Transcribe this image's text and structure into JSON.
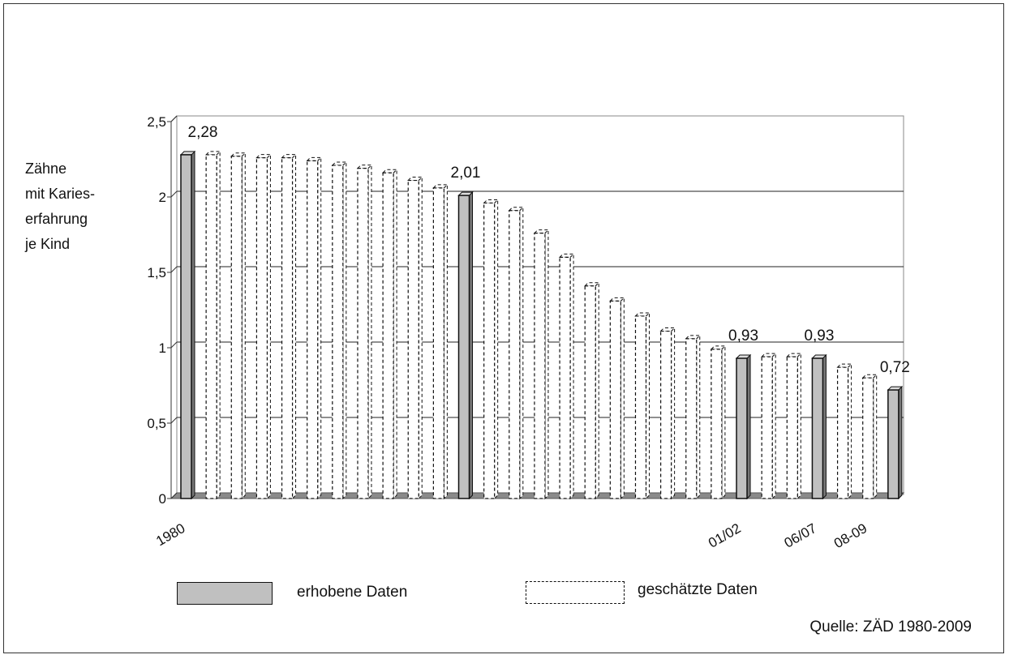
{
  "chart_data": {
    "type": "bar",
    "ylabel_lines": [
      "Zähne",
      "mit Karies-",
      "erfahrung",
      "je Kind"
    ],
    "ylim": [
      0,
      2.5
    ],
    "yticks": [
      0,
      0.5,
      1,
      1.5,
      2,
      2.5
    ],
    "ytick_labels": [
      "0",
      "0,5",
      "1",
      "1,5",
      "2",
      "2,5"
    ],
    "grid": true,
    "x_labels": [
      {
        "index": 0,
        "text": "1980"
      },
      {
        "index": 22,
        "text": "01/02"
      },
      {
        "index": 25,
        "text": "06/07"
      },
      {
        "index": 27,
        "text": "08-09"
      }
    ],
    "values": [
      2.28,
      2.28,
      2.27,
      2.26,
      2.26,
      2.24,
      2.21,
      2.19,
      2.16,
      2.11,
      2.06,
      2.01,
      1.96,
      1.91,
      1.76,
      1.6,
      1.41,
      1.31,
      1.21,
      1.11,
      1.06,
      0.99,
      0.93,
      0.94,
      0.94,
      0.93,
      0.87,
      0.8,
      0.72
    ],
    "measured": [
      true,
      false,
      false,
      false,
      false,
      false,
      false,
      false,
      false,
      false,
      false,
      true,
      false,
      false,
      false,
      false,
      false,
      false,
      false,
      false,
      false,
      false,
      true,
      false,
      false,
      true,
      false,
      false,
      true
    ],
    "data_labels": [
      {
        "index": 0,
        "text": "2,28"
      },
      {
        "index": 11,
        "text": "2,01"
      },
      {
        "index": 22,
        "text": "0,93"
      },
      {
        "index": 25,
        "text": "0,93"
      },
      {
        "index": 28,
        "text": "0,72"
      }
    ],
    "legend": [
      {
        "name": "erhobene Daten",
        "style": "solid"
      },
      {
        "name": "geschätzte Daten",
        "style": "dashed"
      }
    ],
    "legend_position": "bottom",
    "colors": {
      "measured": "#c0c0c0",
      "estimated": "#ffffff",
      "gridline": "#222222",
      "border": "#888888"
    }
  },
  "source": "Quelle: ZÄD 1980-2009"
}
